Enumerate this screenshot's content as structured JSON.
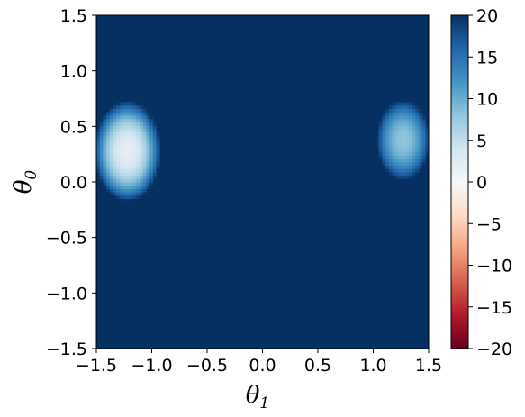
{
  "chart_data": {
    "type": "heatmap",
    "title": "",
    "xlabel": "θ",
    "xlabel_subscript": "1",
    "ylabel": "θ",
    "ylabel_subscript": "0",
    "xlim": [
      -1.5,
      1.5
    ],
    "ylim": [
      -1.5,
      1.5
    ],
    "x_ticks": [
      -1.5,
      -1.0,
      -0.5,
      0.0,
      0.5,
      1.0,
      1.5
    ],
    "x_tick_labels": [
      "−1.5",
      "−1.0",
      "−0.5",
      "0.0",
      "0.5",
      "1.0",
      "1.5"
    ],
    "y_ticks": [
      -1.5,
      -1.0,
      -0.5,
      0.0,
      0.5,
      1.0,
      1.5
    ],
    "y_tick_labels": [
      "−1.5",
      "−1.0",
      "−0.5",
      "0.0",
      "0.5",
      "1.0",
      "1.5"
    ],
    "colorbar": {
      "colormap": "RdBu",
      "vmin": -20,
      "vmax": 20,
      "ticks": [
        20,
        15,
        10,
        5,
        0,
        -5,
        -10,
        -15,
        -20
      ],
      "tick_labels": [
        "20",
        "15",
        "10",
        "5",
        "0",
        "−5",
        "−10",
        "−15",
        "−20"
      ]
    },
    "background_value": 20,
    "blobs": [
      {
        "center": [
          -1.22,
          0.28
        ],
        "x_half_width": 0.3,
        "y_half_height": 0.45,
        "min_value": 2
      },
      {
        "center": [
          1.27,
          0.38
        ],
        "x_half_width": 0.24,
        "y_half_height": 0.36,
        "min_value": 8
      }
    ],
    "grid": false
  }
}
